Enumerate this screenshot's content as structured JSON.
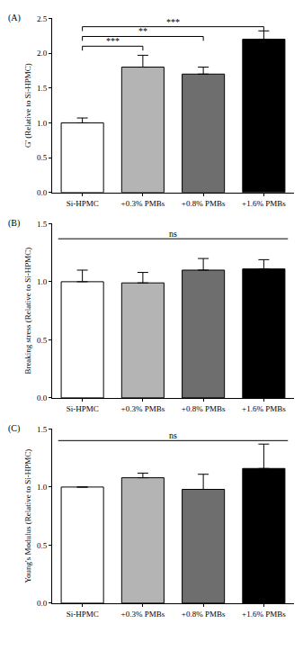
{
  "chart_data": [
    {
      "type": "bar",
      "panel": "(A)",
      "y_label": "G' (Relative to Si-HPMC)",
      "categories": [
        "Si-HPMC",
        "+0.3% PMBs",
        "+0.8% PMBs",
        "+1.6% PMBs"
      ],
      "values": [
        1.0,
        1.8,
        1.7,
        2.2
      ],
      "errors": [
        0.07,
        0.17,
        0.1,
        0.12
      ],
      "colors": [
        "#ffffff",
        "#b4b4b4",
        "#6e6e6e",
        "#000000"
      ],
      "ylim": [
        0,
        2.5
      ],
      "yticks": [
        {
          "value": 0,
          "label": "0.0"
        },
        0.5,
        {
          "value": 1,
          "label": "1.0"
        },
        1.5,
        {
          "value": 2,
          "label": "2.0"
        },
        2.5
      ],
      "significance": [
        {
          "text": "***",
          "from": "Si-HPMC",
          "to": "+0.3% PMBs",
          "y": 2.1,
          "shape": "bracket"
        },
        {
          "text": "**",
          "from": "Si-HPMC",
          "to": "+0.8% PMBs",
          "y": 2.24,
          "shape": "bracket"
        },
        {
          "text": "***",
          "from": "Si-HPMC",
          "to": "+1.6% PMBs",
          "y": 2.38,
          "shape": "bracket"
        }
      ]
    },
    {
      "type": "bar",
      "panel": "(B)",
      "y_label": "Breaking stress (Relative to Si-HPMC)",
      "categories": [
        "Si-HPMC",
        "+0.3% PMBs",
        "+0.8% PMBs",
        "+1.6% PMBs"
      ],
      "values": [
        1.0,
        0.99,
        1.1,
        1.11
      ],
      "errors": [
        0.1,
        0.09,
        0.1,
        0.08
      ],
      "colors": [
        "#ffffff",
        "#b4b4b4",
        "#6e6e6e",
        "#000000"
      ],
      "ylim": [
        0,
        1.5
      ],
      "yticks": [
        {
          "value": 0,
          "label": "0.0"
        },
        0.5,
        {
          "value": 1,
          "label": "1.0"
        },
        1.5
      ],
      "significance": [
        {
          "text": "ns",
          "from": "Si-HPMC",
          "to": "+1.6% PMBs",
          "y": 1.37,
          "shape": "line"
        }
      ]
    },
    {
      "type": "bar",
      "panel": "(C)",
      "y_label": "Young's Modulus (Relative to Si-HPMC)",
      "categories": [
        "Si-HPMC",
        "+0.3% PMBs",
        "+0.8% PMBs",
        "+1.6% PMBs"
      ],
      "values": [
        1.0,
        1.08,
        0.98,
        1.16
      ],
      "errors": [
        0,
        0.04,
        0.13,
        0.21
      ],
      "colors": [
        "#ffffff",
        "#b4b4b4",
        "#6e6e6e",
        "#000000"
      ],
      "ylim": [
        0,
        1.5
      ],
      "yticks": [
        {
          "value": 0,
          "label": "0.0"
        },
        0.5,
        {
          "value": 1,
          "label": "1.0"
        },
        1.5
      ],
      "significance": [
        {
          "text": "ns",
          "from": "Si-HPMC",
          "to": "+1.6% PMBs",
          "y": 1.4,
          "shape": "line"
        }
      ]
    }
  ]
}
